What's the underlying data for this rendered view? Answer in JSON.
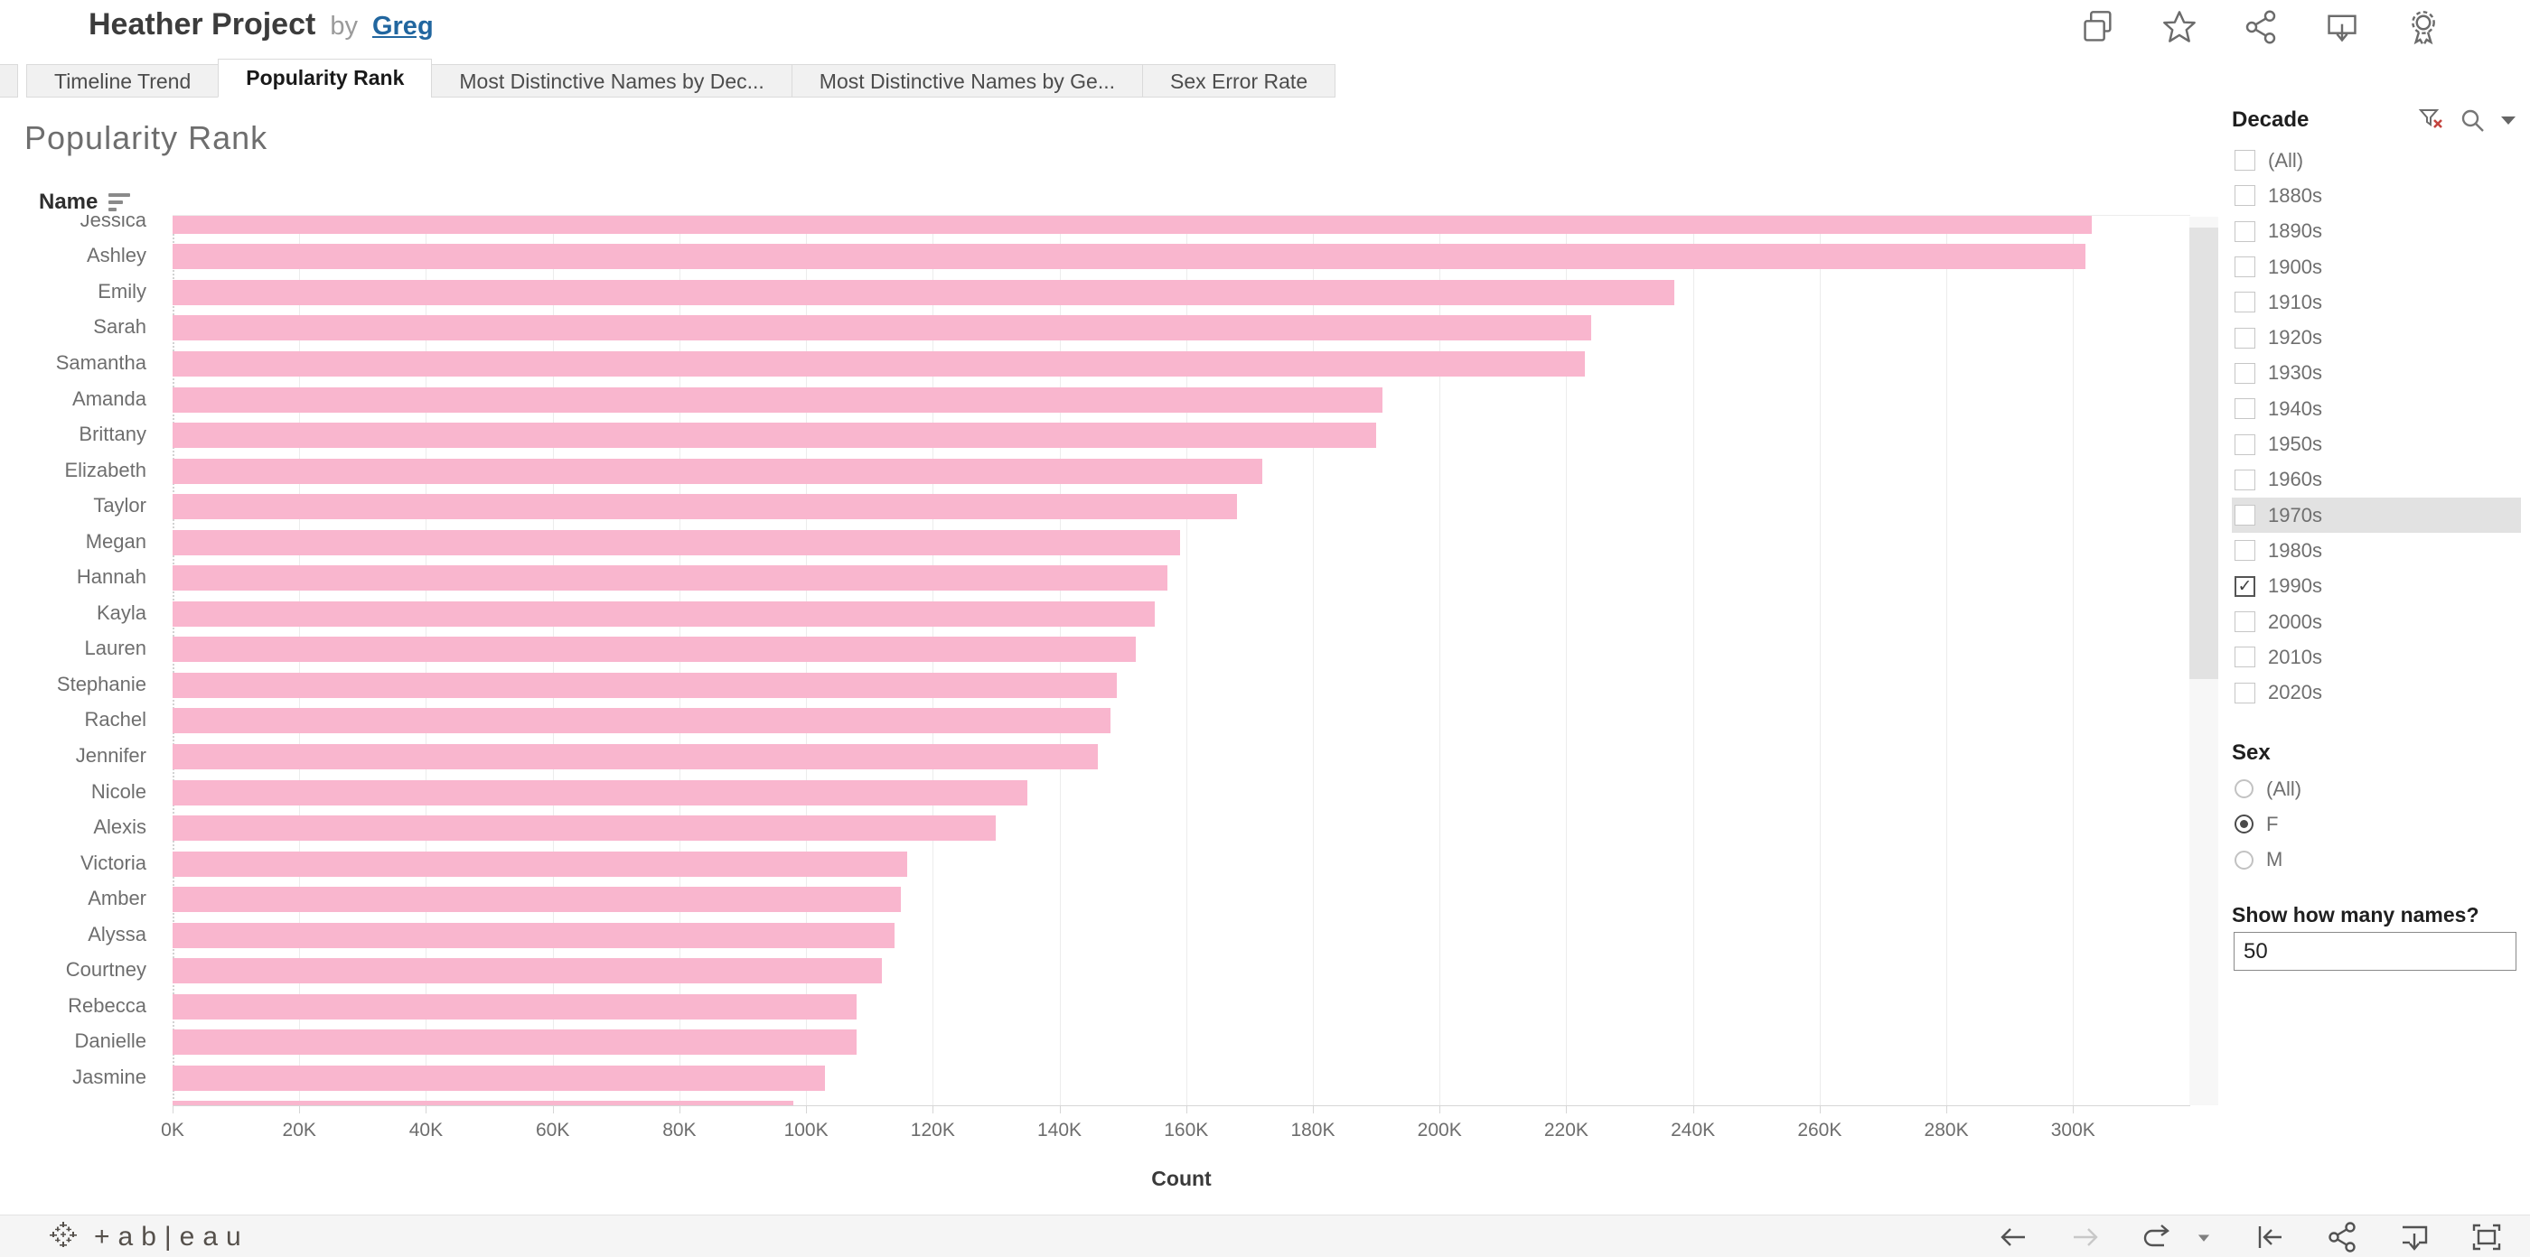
{
  "header": {
    "title": "Heather Project",
    "by_label": "by",
    "author": "Greg",
    "icons": [
      "copy-icon",
      "star-icon",
      "share-icon",
      "download-icon",
      "award-icon"
    ]
  },
  "tabs": [
    {
      "label": "Timeline Trend",
      "active": false
    },
    {
      "label": "Popularity Rank",
      "active": true
    },
    {
      "label": "Most Distinctive Names by Dec...",
      "active": false
    },
    {
      "label": "Most Distinctive Names by Ge...",
      "active": false
    },
    {
      "label": "Sex Error Rate",
      "active": false
    }
  ],
  "chart_data": {
    "type": "bar",
    "orientation": "horizontal",
    "title": "Popularity Rank",
    "column_header": "Name",
    "xlabel": "Count",
    "bar_color": "#f9b6ce",
    "xlim": [
      0,
      318500
    ],
    "grid": true,
    "categories": [
      "Jessica",
      "Ashley",
      "Emily",
      "Sarah",
      "Samantha",
      "Amanda",
      "Brittany",
      "Elizabeth",
      "Taylor",
      "Megan",
      "Hannah",
      "Kayla",
      "Lauren",
      "Stephanie",
      "Rachel",
      "Jennifer",
      "Nicole",
      "Alexis",
      "Victoria",
      "Amber",
      "Alyssa",
      "Courtney",
      "Rebecca",
      "Danielle",
      "Jasmine",
      ""
    ],
    "values": [
      303000,
      302000,
      237000,
      224000,
      223000,
      191000,
      190000,
      172000,
      168000,
      159000,
      157000,
      155000,
      152000,
      149000,
      148000,
      146000,
      135000,
      130000,
      116000,
      115000,
      114000,
      112000,
      108000,
      108000,
      103000,
      98000
    ],
    "x_ticks": {
      "values": [
        0,
        20000,
        40000,
        60000,
        80000,
        100000,
        120000,
        140000,
        160000,
        180000,
        200000,
        220000,
        240000,
        260000,
        280000,
        300000
      ],
      "labels": [
        "0K",
        "20K",
        "40K",
        "60K",
        "80K",
        "100K",
        "120K",
        "140K",
        "160K",
        "180K",
        "200K",
        "220K",
        "240K",
        "260K",
        "280K",
        "300K"
      ]
    },
    "notes": "Top row (Jessica) and a 26th unnamed bar are partially clipped by the scrolled viewport"
  },
  "filters": {
    "decade": {
      "label": "Decade",
      "header_icons": [
        "clear-filter-icon",
        "search-icon",
        "dropdown-caret-icon"
      ],
      "options": [
        {
          "label": "(All)",
          "checked": false
        },
        {
          "label": "1880s",
          "checked": false
        },
        {
          "label": "1890s",
          "checked": false
        },
        {
          "label": "1900s",
          "checked": false
        },
        {
          "label": "1910s",
          "checked": false
        },
        {
          "label": "1920s",
          "checked": false
        },
        {
          "label": "1930s",
          "checked": false
        },
        {
          "label": "1940s",
          "checked": false
        },
        {
          "label": "1950s",
          "checked": false
        },
        {
          "label": "1960s",
          "checked": false
        },
        {
          "label": "1970s",
          "checked": false,
          "highlighted": true
        },
        {
          "label": "1980s",
          "checked": false
        },
        {
          "label": "1990s",
          "checked": true
        },
        {
          "label": "2000s",
          "checked": false
        },
        {
          "label": "2010s",
          "checked": false
        },
        {
          "label": "2020s",
          "checked": false
        }
      ]
    },
    "sex": {
      "label": "Sex",
      "options": [
        {
          "label": "(All)",
          "selected": false
        },
        {
          "label": "F",
          "selected": true
        },
        {
          "label": "M",
          "selected": false
        }
      ]
    },
    "names_count": {
      "label": "Show how many names?",
      "value": "50"
    }
  },
  "toolbar": {
    "logo_word": "+ab|eau",
    "icons": [
      "undo-icon",
      "redo-icon",
      "replay-icon",
      "replay-caret-icon",
      "reset-icon",
      "share-icon",
      "download-icon",
      "fullscreen-icon"
    ]
  },
  "colors": {
    "bar_pink": "#f9b6ce",
    "link_blue": "#21669f",
    "highlight_row": "#e2e2e2",
    "toolbar_bg": "#f5f5f5"
  }
}
